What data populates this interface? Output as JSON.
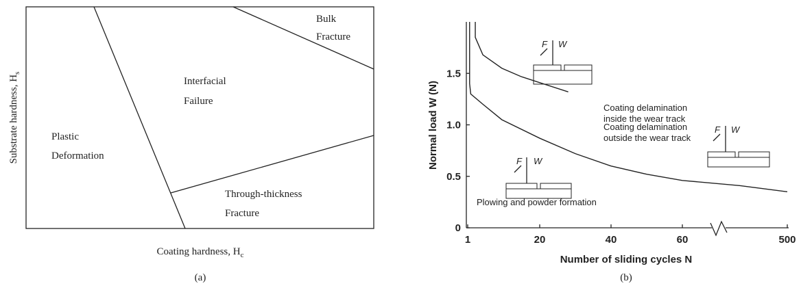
{
  "panel_a": {
    "label": "(a)",
    "x_axis_label": {
      "text": "Coating hardness, H",
      "subscript": "c"
    },
    "y_axis_label": {
      "text": "Substrate hardness, H",
      "subscript": "s"
    },
    "regions": [
      {
        "lines": [
          "Bulk",
          "Fracture"
        ]
      },
      {
        "lines": [
          "Interfacial",
          "Failure"
        ]
      },
      {
        "lines": [
          "Plastic",
          "Deformation"
        ]
      },
      {
        "lines": [
          "Through-thickness",
          "Fracture"
        ]
      }
    ]
  },
  "panel_b": {
    "label": "(b)"
  },
  "chart_data": {
    "type": "line",
    "x_axis_label": "Number of sliding cycles N",
    "y_axis_label": "Normal load W (N)",
    "xlim": [
      1,
      500
    ],
    "ylim": [
      0,
      2
    ],
    "xticks": [
      1,
      20,
      40,
      60,
      500
    ],
    "yticks": [
      0,
      0.5,
      {
        "value": 1,
        "label": "1.0"
      },
      1.5
    ],
    "series": [
      {
        "color": "#222222",
        "x": [
          1.5,
          1.5,
          1.8,
          5,
          10,
          20,
          30,
          40,
          50,
          60,
          300,
          500
        ],
        "values": [
          2,
          1.4,
          1.3,
          1.2,
          1.05,
          0.87,
          0.72,
          0.6,
          0.52,
          0.46,
          0.41,
          0.35
        ]
      },
      {
        "color": "#222222",
        "x": [
          3,
          3,
          5,
          10,
          15,
          20,
          28
        ],
        "values": [
          2,
          1.85,
          1.68,
          1.55,
          1.47,
          1.41,
          1.32
        ]
      }
    ],
    "annotations": {
      "inside": [
        "Coating delamination",
        "inside the wear track"
      ],
      "outside": [
        "Coating delamination",
        "outside the wear track"
      ],
      "plowing": "Plowing and powder formation",
      "force": "F",
      "load": "W"
    }
  }
}
